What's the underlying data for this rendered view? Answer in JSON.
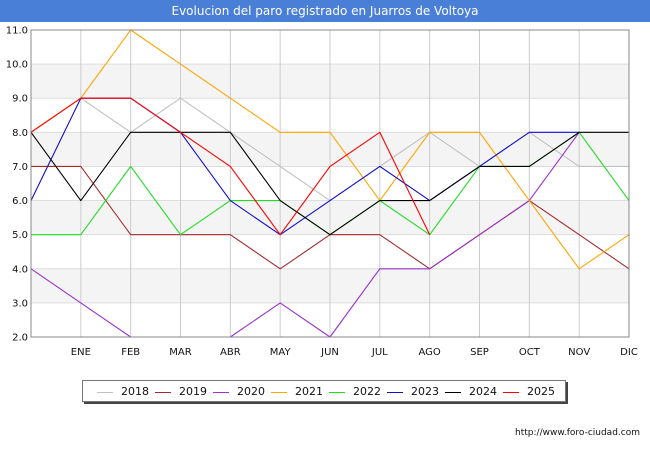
{
  "chart_data": {
    "type": "line",
    "title": "Evolucion del paro registrado en Juarros de Voltoya",
    "categories": [
      "",
      "ENE",
      "FEB",
      "MAR",
      "ABR",
      "MAY",
      "JUN",
      "JUL",
      "AGO",
      "SEP",
      "OCT",
      "NOV",
      "DIC"
    ],
    "ylim": [
      2.0,
      11.0
    ],
    "yticks": [
      "2.0",
      "3.0",
      "4.0",
      "5.0",
      "6.0",
      "7.0",
      "8.0",
      "9.0",
      "10.0",
      "11.0"
    ],
    "grid": true,
    "legend_position": "bottom",
    "series": [
      {
        "name": "2018",
        "color": "#c0c0c0",
        "values": [
          8,
          9,
          8,
          9,
          8,
          7,
          6,
          7,
          8,
          7,
          8,
          7,
          7
        ]
      },
      {
        "name": "2019",
        "color": "#a52a2a",
        "values": [
          7,
          7,
          5,
          5,
          5,
          4,
          5,
          5,
          4,
          5,
          6,
          5,
          4
        ]
      },
      {
        "name": "2020",
        "color": "#9932cc",
        "values": [
          4,
          3,
          2,
          null,
          2,
          3,
          2,
          4,
          4,
          5,
          6,
          8,
          null
        ]
      },
      {
        "name": "2021",
        "color": "#ffa500",
        "values": [
          8,
          9,
          11,
          10,
          9,
          8,
          8,
          6,
          8,
          8,
          6,
          4,
          5
        ]
      },
      {
        "name": "2022",
        "color": "#22dd22",
        "values": [
          5,
          5,
          7,
          5,
          6,
          6,
          5,
          6,
          5,
          7,
          7,
          8,
          6
        ]
      },
      {
        "name": "2023",
        "color": "#1010cc",
        "values": [
          6,
          9,
          9,
          8,
          6,
          5,
          6,
          7,
          6,
          7,
          8,
          8,
          null
        ]
      },
      {
        "name": "2024",
        "color": "#000000",
        "values": [
          8,
          6,
          8,
          8,
          8,
          6,
          5,
          6,
          6,
          7,
          7,
          8,
          8
        ]
      },
      {
        "name": "2025",
        "color": "#ff0000",
        "values": [
          8,
          9,
          9,
          8,
          7,
          5,
          7,
          8,
          5,
          null,
          null,
          null,
          null
        ]
      }
    ]
  },
  "footer": "http://www.foro-ciudad.com"
}
